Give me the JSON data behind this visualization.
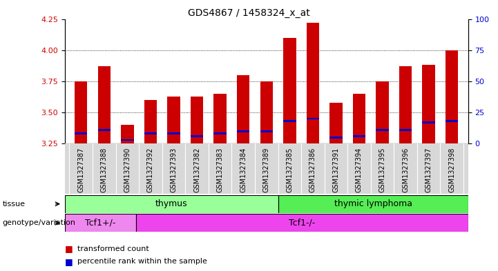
{
  "title": "GDS4867 / 1458324_x_at",
  "samples": [
    "GSM1327387",
    "GSM1327388",
    "GSM1327390",
    "GSM1327392",
    "GSM1327393",
    "GSM1327382",
    "GSM1327383",
    "GSM1327384",
    "GSM1327389",
    "GSM1327385",
    "GSM1327386",
    "GSM1327391",
    "GSM1327394",
    "GSM1327395",
    "GSM1327396",
    "GSM1327397",
    "GSM1327398"
  ],
  "bar_values": [
    3.75,
    3.87,
    3.4,
    3.6,
    3.63,
    3.63,
    3.65,
    3.8,
    3.75,
    4.1,
    4.22,
    3.58,
    3.65,
    3.75,
    3.87,
    3.88,
    4.0
  ],
  "blue_dot_values": [
    3.33,
    3.36,
    3.28,
    3.33,
    3.33,
    3.31,
    3.33,
    3.35,
    3.35,
    3.43,
    3.45,
    3.3,
    3.31,
    3.36,
    3.36,
    3.42,
    3.43
  ],
  "ymin": 3.25,
  "ymax": 4.25,
  "yticks": [
    3.25,
    3.5,
    3.75,
    4.0,
    4.25
  ],
  "y2ticks": [
    0,
    25,
    50,
    75,
    100
  ],
  "bar_color": "#cc0000",
  "dot_color": "#0000cc",
  "tissue_thymus_count": 9,
  "tissue_lymphoma_count": 8,
  "genotype_tcf1plus_count": 3,
  "genotype_tcf1minus_count": 14,
  "tissue_thymus_color": "#99ff99",
  "tissue_lymphoma_color": "#55ee55",
  "genotype_plus_color": "#ee88ee",
  "genotype_minus_color": "#ee44ee",
  "tick_label_color_left": "#cc0000",
  "tick_label_color_right": "#0000cc",
  "label_tissue": "tissue",
  "label_genotype": "genotype/variation",
  "label_thymus": "thymus",
  "label_lymphoma": "thymic lymphoma",
  "label_tcf1plus": "Tcf1+/-",
  "label_tcf1minus": "Tcf1-/-",
  "legend_red": "transformed count",
  "legend_blue": "percentile rank within the sample",
  "xtick_bg": "#d8d8d8"
}
